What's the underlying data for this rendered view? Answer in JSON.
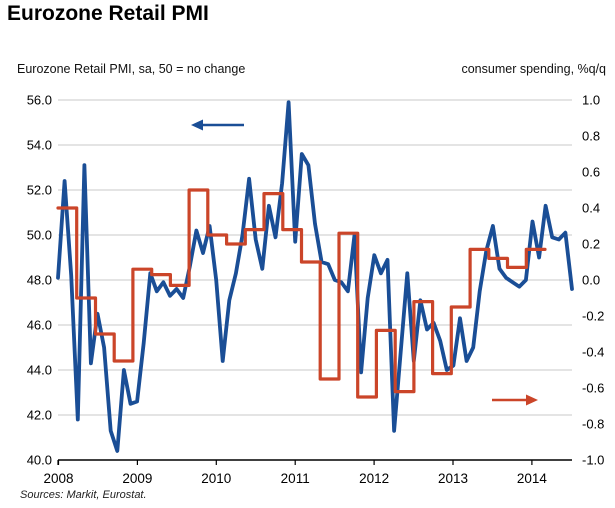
{
  "header": {
    "title": "Eurozone Retail PMI"
  },
  "axes": {
    "left_label": "Eurozone Retail PMI, sa, 50 = no change",
    "right_label": "consumer spending, %q/q",
    "left_tick_labels": [
      "56.0",
      "54.0",
      "52.0",
      "50.0",
      "48.0",
      "46.0",
      "44.0",
      "42.0",
      "40.0"
    ],
    "right_tick_labels": [
      "1.0",
      "0.8",
      "0.6",
      "0.4",
      "0.2",
      "0.0",
      "-0.2",
      "-0.4",
      "-0.6",
      "-0.8",
      "-1.0"
    ],
    "x_tick_labels": [
      "2008",
      "2009",
      "2010",
      "2011",
      "2012",
      "2013",
      "2014"
    ]
  },
  "footer": {
    "sources": "Sources: Markit, Eurostat."
  },
  "colors": {
    "pmi_line": "#1a4e96",
    "spending_line": "#cb4529",
    "gridline": "#c8c8c8",
    "axis": "#000000"
  },
  "chart_data": {
    "type": "line",
    "title": "Eurozone Retail PMI",
    "xlabel": "",
    "left_axis": {
      "label": "Eurozone Retail PMI, sa, 50 = no change",
      "ylim": [
        40,
        56
      ],
      "tick_step": 2
    },
    "right_axis": {
      "label": "consumer spending, %q/q",
      "ylim": [
        -1.0,
        1.0
      ],
      "tick_step": 0.2
    },
    "x_range": [
      "2008-01",
      "2014-07"
    ],
    "grid": "horizontal",
    "series": [
      {
        "name": "Eurozone Retail PMI (sa, 50 = no change)",
        "axis": "left",
        "frequency": "monthly",
        "start": "2008-01",
        "style": "line",
        "color": "#1a4e96",
        "values": [
          48.1,
          52.4,
          48.2,
          41.8,
          53.1,
          44.3,
          46.5,
          45.0,
          41.3,
          40.4,
          44.0,
          42.5,
          42.6,
          45.2,
          48.3,
          47.5,
          47.9,
          47.3,
          47.6,
          47.2,
          48.6,
          50.2,
          49.2,
          50.4,
          48.0,
          44.4,
          47.1,
          48.3,
          50.0,
          52.5,
          49.8,
          48.5,
          51.3,
          49.9,
          52.3,
          55.9,
          49.7,
          53.6,
          53.1,
          50.5,
          48.8,
          48.7,
          48.0,
          47.9,
          47.5,
          50.0,
          43.9,
          47.2,
          49.1,
          48.3,
          48.9,
          41.3,
          44.8,
          48.3,
          44.4,
          47.1,
          45.8,
          46.1,
          45.3,
          44.0,
          44.2,
          46.3,
          44.4,
          45.0,
          47.5,
          49.3,
          50.4,
          48.5,
          48.1,
          47.9,
          47.7,
          48.0,
          50.6,
          49.0,
          51.3,
          49.9,
          49.8,
          50.1,
          47.6
        ]
      },
      {
        "name": "consumer spending, %q/q",
        "axis": "right",
        "frequency": "quarterly",
        "start": "2008-Q1",
        "style": "step",
        "color": "#cb4529",
        "values": [
          0.4,
          -0.1,
          -0.3,
          -0.45,
          0.06,
          0.03,
          -0.03,
          0.5,
          0.25,
          0.2,
          0.28,
          0.48,
          0.28,
          0.1,
          -0.55,
          0.26,
          -0.65,
          -0.28,
          -0.62,
          -0.12,
          -0.52,
          -0.15,
          0.17,
          0.12,
          0.07,
          0.17
        ]
      }
    ],
    "annotations": [
      {
        "id": "pmi-arrow",
        "shape": "arrow-left",
        "meaning": "PMI series read on left axis",
        "color": "#1a4e96"
      },
      {
        "id": "spending-arrow",
        "shape": "arrow-right",
        "meaning": "spending series read on right axis",
        "color": "#cb4529"
      }
    ]
  }
}
